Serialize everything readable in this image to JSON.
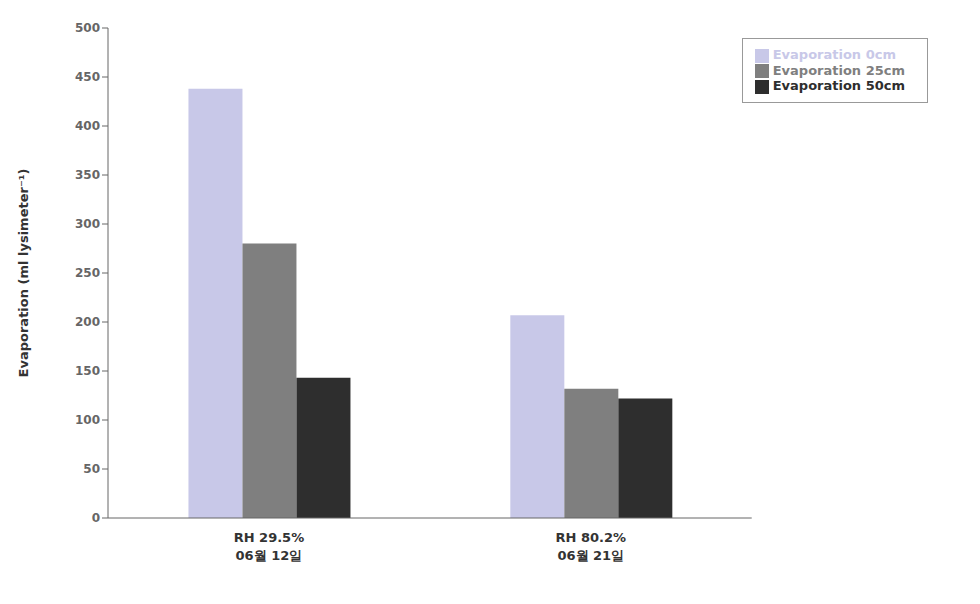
{
  "chart_data": {
    "type": "bar",
    "categories": [
      "RH 29.5%\n06월 12일",
      "RH 80.2%\n06월 21일"
    ],
    "series": [
      {
        "name": "Evaporation 0cm",
        "color": "#c8c8e8",
        "values": [
          438,
          207
        ]
      },
      {
        "name": "Evaporation 25cm",
        "color": "#7f7f7f",
        "values": [
          280,
          132
        ]
      },
      {
        "name": "Evaporation 50cm",
        "color": "#2e2e2e",
        "values": [
          143,
          122
        ]
      }
    ],
    "ylabel": "Evaporation (ml lysimeter⁻¹)",
    "ylim": [
      0,
      500
    ],
    "yticks": [
      0,
      50,
      100,
      150,
      200,
      250,
      300,
      350,
      400,
      450,
      500
    ],
    "grid": false,
    "legend": "upper right"
  }
}
